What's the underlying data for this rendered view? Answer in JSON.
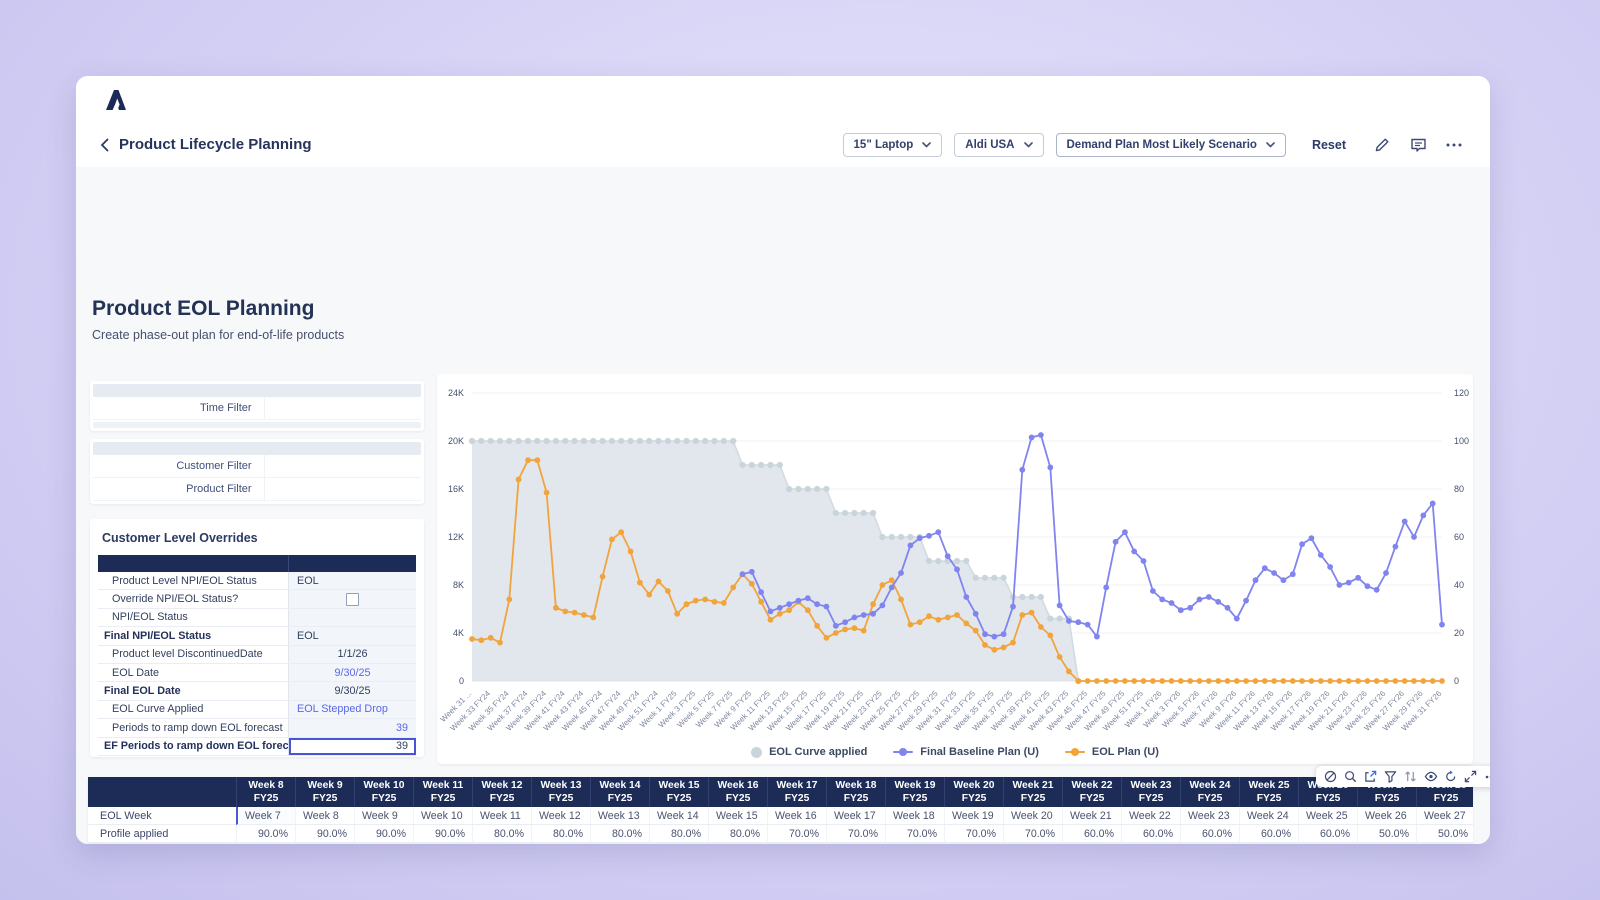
{
  "nav": {
    "back_label": "Product Lifecycle Planning",
    "device_selector": "15\" Laptop",
    "customer_selector": "Aldi USA",
    "scenario_selector": "Demand Plan Most Likely Scenario",
    "reset_label": "Reset",
    "icons": [
      "pencil-icon",
      "comment-icon",
      "ellipsis-icon"
    ],
    "logo_icon": "anaplan-logo"
  },
  "page": {
    "title": "Product EOL Planning",
    "subtitle": "Create phase-out plan for end-of-life products"
  },
  "filters": {
    "time_filter_label": "Time Filter",
    "customer_filter_label": "Customer Filter",
    "product_filter_label": "Product Filter"
  },
  "overrides": {
    "title": "Customer Level Overrides",
    "rows": [
      {
        "label": "Product Level NPI/EOL Status",
        "value": "EOL",
        "align": "left"
      },
      {
        "label": "Override NPI/EOL Status?",
        "checkbox": true,
        "align": "center"
      },
      {
        "label": "NPI/EOL Status",
        "value": "",
        "align": "left"
      },
      {
        "label": "Final NPI/EOL Status",
        "value": "EOL",
        "align": "left",
        "bold": true
      },
      {
        "label": "Product level DiscontinuedDate",
        "value": "1/1/26",
        "align": "center"
      },
      {
        "label": "EOL Date",
        "value": "9/30/25",
        "align": "center",
        "link": true
      },
      {
        "label": "Final EOL Date",
        "value": "9/30/25",
        "align": "center",
        "bold": true
      },
      {
        "label": "EOL Curve Applied",
        "value": "EOL Stepped Drop",
        "align": "left",
        "link": true
      },
      {
        "label": "Periods to ramp down EOL forecast",
        "value": "39",
        "align": "right",
        "link": true
      },
      {
        "label": "EF Periods to ramp down EOL forecast",
        "value": "39",
        "align": "right",
        "bold": true,
        "selected": true
      }
    ]
  },
  "chart_data": {
    "type": "line",
    "title": "",
    "x_labels": [
      "Week 31 ...",
      "Week 33 FY24",
      "Week 35 FY24",
      "Week 37 FY24",
      "Week 39 FY24",
      "Week 41 FY24",
      "Week 43 FY24",
      "Week 45 FY24",
      "Week 47 FY24",
      "Week 49 FY24",
      "Week 51 FY24",
      "Week 1 FY25",
      "Week 3 FY25",
      "Week 5 FY25",
      "Week 7 FY25",
      "Week 9 FY25",
      "Week 11 FY25",
      "Week 13 FY25",
      "Week 15 FY25",
      "Week 17 FY25",
      "Week 19 FY25",
      "Week 21 FY25",
      "Week 23 FY25",
      "Week 25 FY25",
      "Week 27 FY25",
      "Week 29 FY25",
      "Week 31 FY25",
      "Week 33 FY25",
      "Week 35 FY25",
      "Week 37 FY25",
      "Week 39 FY25",
      "Week 41 FY25",
      "Week 43 FY25",
      "Week 45 FY25",
      "Week 47 FY25",
      "Week 49 FY25",
      "Week 51 FY25",
      "Week 1 FY26",
      "Week 3 FY26",
      "Week 5 FY26",
      "Week 7 FY26",
      "Week 9 FY26",
      "Week 11 FY26",
      "Week 13 FY26",
      "Week 15 FY26",
      "Week 17 FY26",
      "Week 19 FY26",
      "Week 21 FY26",
      "Week 23 FY26",
      "Week 25 FY26",
      "Week 27 FY26",
      "Week 29 FY26",
      "Week 31 FY26"
    ],
    "points_per_label": 2,
    "left_axis": {
      "ticks": [
        "24K",
        "20K",
        "16K",
        "12K",
        "8K",
        "4K",
        "0"
      ],
      "max": 24,
      "unit": "K units"
    },
    "right_axis": {
      "ticks": [
        "120",
        "100",
        "80",
        "60",
        "40",
        "20",
        "0"
      ],
      "max": 120,
      "unit": "percent"
    },
    "grid": true,
    "legend_position": "bottom-center",
    "series": [
      {
        "name": "EOL Curve applied",
        "type": "area",
        "axis": "right",
        "color": "#c9d4db",
        "fill": "#dce3e9",
        "values": [
          100,
          100,
          100,
          100,
          100,
          100,
          100,
          100,
          100,
          100,
          100,
          100,
          100,
          100,
          100,
          100,
          100,
          100,
          100,
          100,
          100,
          100,
          100,
          100,
          100,
          100,
          100,
          100,
          100,
          90,
          90,
          90,
          90,
          90,
          80,
          80,
          80,
          80,
          80,
          70,
          70,
          70,
          70,
          70,
          60,
          60,
          60,
          60,
          60,
          50,
          50,
          50,
          50,
          50,
          43,
          43,
          43,
          43,
          35,
          35,
          35,
          35,
          26,
          26,
          26,
          0,
          0,
          0,
          0,
          0,
          0,
          0,
          0,
          0,
          0,
          0,
          0,
          0,
          0,
          0,
          0,
          0,
          0,
          0,
          0,
          0,
          0,
          0,
          0,
          0,
          0,
          0,
          0,
          0,
          0,
          0,
          0,
          0,
          0,
          0,
          0,
          0,
          0,
          0,
          0
        ]
      },
      {
        "name": "Final Baseline Plan (U)",
        "type": "line",
        "axis": "left",
        "color": "#8084ee",
        "values": [
          null,
          null,
          null,
          null,
          null,
          null,
          null,
          null,
          null,
          null,
          null,
          null,
          null,
          null,
          null,
          null,
          null,
          null,
          null,
          null,
          null,
          null,
          null,
          null,
          null,
          null,
          null,
          null,
          null,
          8.9,
          9.1,
          7.4,
          5.8,
          6.1,
          6.4,
          6.7,
          6.9,
          6.4,
          6.2,
          4.6,
          4.9,
          5.3,
          5.5,
          5.6,
          6.3,
          7.8,
          9.0,
          11.3,
          11.9,
          12.1,
          12.4,
          10.4,
          9.3,
          7.0,
          5.6,
          3.9,
          3.7,
          3.9,
          6.2,
          17.6,
          20.3,
          20.5,
          17.8,
          6.3,
          5.0,
          4.9,
          4.7,
          3.7,
          7.8,
          11.6,
          12.4,
          10.8,
          10.0,
          7.5,
          6.8,
          6.5,
          5.9,
          6.1,
          6.8,
          7.0,
          6.6,
          6.1,
          5.2,
          6.7,
          8.4,
          9.4,
          9.0,
          8.4,
          8.9,
          11.4,
          11.9,
          10.5,
          9.5,
          8.0,
          8.2,
          8.6,
          7.9,
          7.6,
          9.0,
          11.2,
          13.3,
          12.0,
          13.8,
          14.8,
          4.7
        ]
      },
      {
        "name": "EOL Plan (U)",
        "type": "line",
        "axis": "left",
        "color": "#f2a43c",
        "values": [
          3.5,
          3.4,
          3.6,
          3.2,
          6.8,
          16.8,
          18.4,
          18.4,
          15.7,
          6.1,
          5.8,
          5.7,
          5.5,
          5.3,
          8.7,
          11.8,
          12.4,
          10.8,
          8.2,
          7.2,
          8.3,
          7.5,
          5.6,
          6.4,
          6.7,
          6.8,
          6.6,
          6.5,
          7.8,
          8.9,
          8.1,
          6.6,
          5.1,
          5.6,
          5.9,
          6.6,
          5.9,
          4.6,
          3.6,
          4.0,
          4.3,
          4.4,
          4.2,
          6.4,
          8.0,
          8.4,
          6.8,
          4.7,
          4.9,
          5.4,
          5.1,
          5.3,
          5.5,
          4.8,
          4.2,
          3.0,
          2.6,
          2.8,
          3.2,
          5.5,
          5.7,
          4.5,
          3.8,
          2.0,
          0.8,
          0,
          0,
          0,
          0,
          0,
          0,
          0,
          0,
          0,
          0,
          0,
          0,
          0,
          0,
          0,
          0,
          0,
          0,
          0,
          0,
          0,
          0,
          0,
          0,
          0,
          0,
          0,
          0,
          0,
          0,
          0,
          0,
          0,
          0,
          0,
          0,
          0,
          0,
          0,
          0
        ]
      }
    ],
    "legend": [
      {
        "label": "EOL Curve applied",
        "color": "#c9d4db",
        "marker": "circle"
      },
      {
        "label": "Final Baseline Plan (U)",
        "color": "#8084ee",
        "marker": "line-dot"
      },
      {
        "label": "EOL Plan (U)",
        "color": "#f2a43c",
        "marker": "line-dot"
      }
    ]
  },
  "chart_toolbar_icons": [
    "ban-icon",
    "search-icon",
    "export-icon",
    "filter-icon",
    "sort-icon",
    "eye-icon",
    "refresh-plus-icon",
    "expand-icon",
    "ellipsis-icon"
  ],
  "bottom_table": {
    "columns": [
      "Week 8 FY25",
      "Week 9 FY25",
      "Week 10 FY25",
      "Week 11 FY25",
      "Week 12 FY25",
      "Week 13 FY25",
      "Week 14 FY25",
      "Week 15 FY25",
      "Week 16 FY25",
      "Week 17 FY25",
      "Week 18 FY25",
      "Week 19 FY25",
      "Week 20 FY25",
      "Week 21 FY25",
      "Week 22 FY25",
      "Week 23 FY25",
      "Week 24 FY25",
      "Week 25 FY25",
      "Week 26 FY25",
      "Week 27 FY25",
      "Week 28 FY25"
    ],
    "rows": [
      {
        "label": "EOL Week",
        "align": "left",
        "values": [
          "Week 7",
          "Week 8",
          "Week 9",
          "Week 10",
          "Week 11",
          "Week 12",
          "Week 13",
          "Week 14",
          "Week 15",
          "Week 16",
          "Week 17",
          "Week 18",
          "Week 19",
          "Week 20",
          "Week 21",
          "Week 22",
          "Week 23",
          "Week 24",
          "Week 25",
          "Week 26",
          "Week 27"
        ]
      },
      {
        "label": "Profile applied",
        "align": "right",
        "values": [
          "90.0%",
          "90.0%",
          "90.0%",
          "90.0%",
          "80.0%",
          "80.0%",
          "80.0%",
          "80.0%",
          "80.0%",
          "70.0%",
          "70.0%",
          "70.0%",
          "70.0%",
          "70.0%",
          "60.0%",
          "60.0%",
          "60.0%",
          "60.0%",
          "60.0%",
          "50.0%",
          "50.0%"
        ]
      }
    ],
    "cursor": {
      "row": 0,
      "col": 0
    }
  }
}
